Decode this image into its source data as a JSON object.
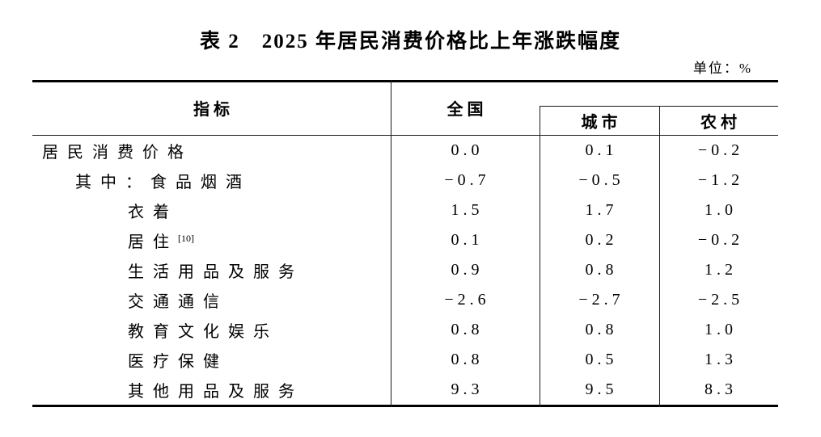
{
  "page": {
    "title": "表 2　2025 年居民消费价格比上年涨跌幅度",
    "unit_label": "单位：%"
  },
  "table": {
    "header": {
      "indicator": "指标",
      "national": "全国",
      "urban": "城市",
      "rural": "农村"
    },
    "rows": [
      {
        "indicator": "居民消费价格",
        "sup": "",
        "national": "0.0",
        "urban": "0.1",
        "rural": "−0.2"
      },
      {
        "indicator": "其中：食品烟酒",
        "sup": "",
        "national": "−0.7",
        "urban": "−0.5",
        "rural": "−1.2"
      },
      {
        "indicator": "衣着",
        "sup": "",
        "national": "1.5",
        "urban": "1.7",
        "rural": "1.0"
      },
      {
        "indicator": "居住",
        "sup": "[10]",
        "national": "0.1",
        "urban": "0.2",
        "rural": "−0.2"
      },
      {
        "indicator": "生活用品及服务",
        "sup": "",
        "national": "0.9",
        "urban": "0.8",
        "rural": "1.2"
      },
      {
        "indicator": "交通通信",
        "sup": "",
        "national": "−2.6",
        "urban": "−2.7",
        "rural": "−2.5"
      },
      {
        "indicator": "教育文化娱乐",
        "sup": "",
        "national": "0.8",
        "urban": "0.8",
        "rural": "1.0"
      },
      {
        "indicator": "医疗保健",
        "sup": "",
        "national": "0.8",
        "urban": "0.5",
        "rural": "1.3"
      },
      {
        "indicator": "其他用品及服务",
        "sup": "",
        "national": "9.3",
        "urban": "9.5",
        "rural": "8.3"
      }
    ]
  }
}
